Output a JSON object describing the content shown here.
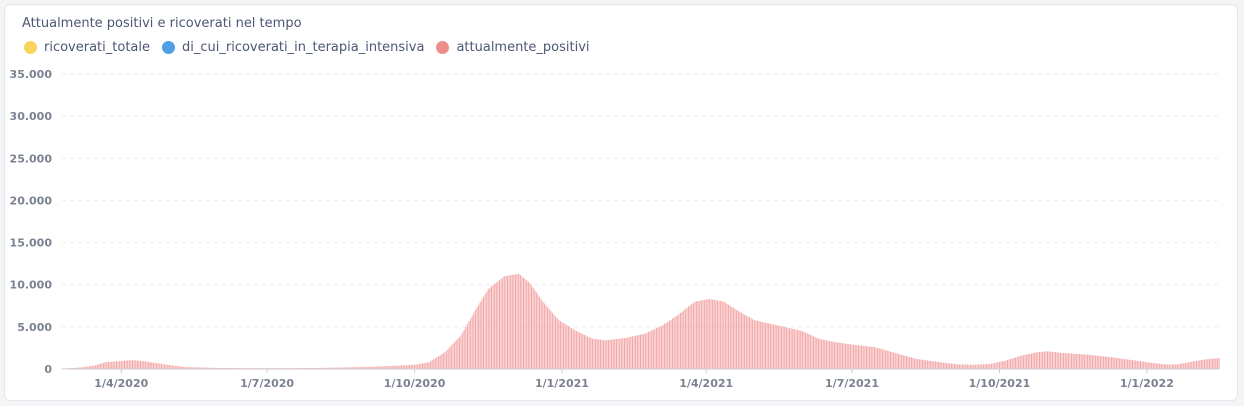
{
  "chart_data": {
    "type": "bar",
    "title": "Attualmente positivi e ricoverati nel tempo",
    "xlabel": "",
    "ylabel": "",
    "ylim": [
      0,
      35000
    ],
    "yticks": [
      0,
      5000,
      10000,
      15000,
      20000,
      25000,
      30000,
      35000
    ],
    "ytick_labels": [
      "0",
      "5.000",
      "10.000",
      "15.000",
      "20.000",
      "25.000",
      "30.000",
      "35.000"
    ],
    "xticks": [
      "2020-04-01",
      "2020-07-01",
      "2020-10-01",
      "2021-01-01",
      "2021-04-01",
      "2021-07-01",
      "2021-10-01",
      "2022-01-01"
    ],
    "xtick_labels": [
      "1/4/2020",
      "1/7/2020",
      "1/10/2020",
      "1/1/2021",
      "1/4/2021",
      "1/7/2021",
      "1/10/2021",
      "1/1/2022"
    ],
    "x_range": [
      "2020-02-24",
      "2022-02-15"
    ],
    "grid": true,
    "legend_position": "top-left",
    "series": [
      {
        "name": "ricoverati_totale",
        "color": "#f9d45c",
        "keypoints": []
      },
      {
        "name": "di_cui_ricoverati_in_terapia_intensiva",
        "color": "#509ee3",
        "keypoints": []
      },
      {
        "name": "attualmente_positivi",
        "color": "#ef8c8c",
        "keypoints": [
          [
            "2020-02-24",
            50
          ],
          [
            "2020-03-05",
            150
          ],
          [
            "2020-03-15",
            400
          ],
          [
            "2020-03-22",
            800
          ],
          [
            "2020-04-01",
            950
          ],
          [
            "2020-04-08",
            1050
          ],
          [
            "2020-04-16",
            900
          ],
          [
            "2020-04-26",
            600
          ],
          [
            "2020-05-10",
            250
          ],
          [
            "2020-06-01",
            120
          ],
          [
            "2020-07-01",
            100
          ],
          [
            "2020-08-01",
            120
          ],
          [
            "2020-09-01",
            250
          ],
          [
            "2020-09-20",
            400
          ],
          [
            "2020-10-01",
            500
          ],
          [
            "2020-10-10",
            800
          ],
          [
            "2020-10-20",
            2000
          ],
          [
            "2020-10-30",
            4000
          ],
          [
            "2020-11-08",
            7000
          ],
          [
            "2020-11-16",
            9500
          ],
          [
            "2020-11-26",
            11000
          ],
          [
            "2020-12-05",
            11300
          ],
          [
            "2020-12-12",
            10200
          ],
          [
            "2020-12-20",
            8000
          ],
          [
            "2020-12-30",
            5800
          ],
          [
            "2021-01-10",
            4500
          ],
          [
            "2021-01-20",
            3600
          ],
          [
            "2021-01-28",
            3400
          ],
          [
            "2021-02-10",
            3700
          ],
          [
            "2021-02-22",
            4200
          ],
          [
            "2021-03-05",
            5200
          ],
          [
            "2021-03-15",
            6500
          ],
          [
            "2021-03-25",
            8000
          ],
          [
            "2021-04-03",
            8300
          ],
          [
            "2021-04-12",
            8000
          ],
          [
            "2021-04-20",
            7000
          ],
          [
            "2021-05-01",
            5800
          ],
          [
            "2021-05-15",
            5200
          ],
          [
            "2021-05-31",
            4500
          ],
          [
            "2021-06-10",
            3600
          ],
          [
            "2021-06-20",
            3200
          ],
          [
            "2021-07-01",
            2900
          ],
          [
            "2021-07-15",
            2600
          ],
          [
            "2021-07-30",
            1800
          ],
          [
            "2021-08-10",
            1200
          ],
          [
            "2021-08-25",
            800
          ],
          [
            "2021-09-05",
            550
          ],
          [
            "2021-09-15",
            500
          ],
          [
            "2021-09-25",
            600
          ],
          [
            "2021-10-05",
            1000
          ],
          [
            "2021-10-15",
            1600
          ],
          [
            "2021-10-25",
            2000
          ],
          [
            "2021-10-31",
            2100
          ],
          [
            "2021-11-10",
            1900
          ],
          [
            "2021-11-25",
            1700
          ],
          [
            "2021-12-10",
            1400
          ],
          [
            "2021-12-25",
            1000
          ],
          [
            "2022-01-05",
            700
          ],
          [
            "2022-01-12",
            550
          ],
          [
            "2022-01-20",
            550
          ],
          [
            "2022-01-30",
            900
          ],
          [
            "2022-02-05",
            1100
          ],
          [
            "2022-02-15",
            1300
          ]
        ]
      }
    ]
  }
}
